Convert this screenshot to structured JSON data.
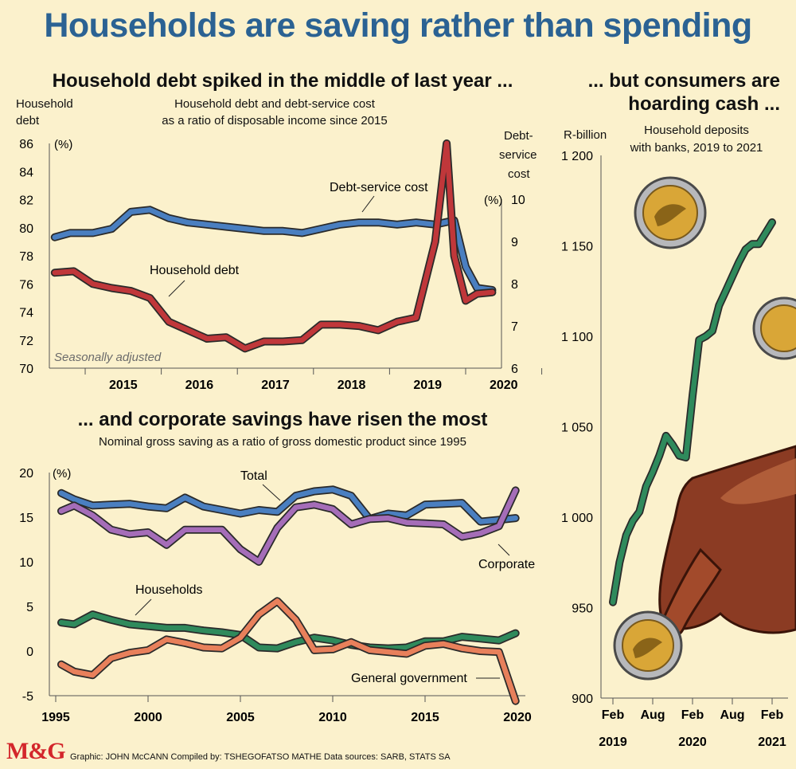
{
  "title": "Households are saving rather than spending",
  "credits": "Graphic: JOHN McCANN  Compiled by: TSHEGOFATSO MATHE  Data sources: SARB, STATS SA",
  "logo": "M&G",
  "colors": {
    "background": "#fbf1cc",
    "title": "#2b6293",
    "blue": "#4a7fc0",
    "red": "#c0373a",
    "purple": "#a56db8",
    "green": "#2f8a5c",
    "orange": "#e8805b"
  },
  "chart_data": [
    {
      "type": "line",
      "title": "Household debt spiked in the middle of last year ...",
      "subtitle_line1": "Household debt and debt-service cost",
      "subtitle_line2": "as a ratio of disposable income since 2015",
      "ylabel_left_line1": "Household",
      "ylabel_left_line2": "debt",
      "ylabel_right_line1": "Debt-",
      "ylabel_right_line2": "service",
      "ylabel_right_line3": "cost",
      "unit_left": "(%)",
      "unit_right": "(%)",
      "note": "Seasonally adjusted",
      "x_ticks": [
        "2015",
        "2016",
        "2017",
        "2018",
        "2019",
        "2020"
      ],
      "ylim_left": [
        70,
        86
      ],
      "yticks_left": [
        70,
        72,
        74,
        76,
        78,
        80,
        82,
        84,
        86
      ],
      "ylim_right": [
        6,
        10
      ],
      "yticks_right": [
        6,
        7,
        8,
        9,
        10
      ],
      "series": [
        {
          "name": "Debt-service cost",
          "axis": "right",
          "x": [
            2014.6,
            2014.8,
            2015.1,
            2015.35,
            2015.6,
            2015.85,
            2016.1,
            2016.35,
            2016.6,
            2016.85,
            2017.1,
            2017.35,
            2017.6,
            2017.85,
            2018.1,
            2018.35,
            2018.6,
            2018.85,
            2019.1,
            2019.35,
            2019.6,
            2019.85,
            2020.0,
            2020.15,
            2020.35
          ],
          "values": [
            9.1,
            9.2,
            9.2,
            9.3,
            9.7,
            9.75,
            9.55,
            9.45,
            9.4,
            9.35,
            9.3,
            9.25,
            9.25,
            9.2,
            9.3,
            9.4,
            9.45,
            9.45,
            9.4,
            9.45,
            9.4,
            9.5,
            8.4,
            7.9,
            7.85
          ]
        },
        {
          "name": "Household debt",
          "axis": "left",
          "x": [
            2014.6,
            2014.85,
            2015.1,
            2015.35,
            2015.6,
            2015.85,
            2016.1,
            2016.35,
            2016.6,
            2016.85,
            2017.1,
            2017.35,
            2017.6,
            2017.85,
            2018.1,
            2018.35,
            2018.6,
            2018.85,
            2019.1,
            2019.35,
            2019.6,
            2019.75,
            2019.85,
            2020.0,
            2020.15,
            2020.35
          ],
          "values": [
            76.8,
            76.9,
            76.0,
            75.7,
            75.5,
            75.0,
            73.3,
            72.7,
            72.1,
            72.2,
            71.4,
            71.9,
            71.9,
            72.0,
            73.1,
            73.1,
            73.0,
            72.7,
            73.3,
            73.6,
            79.0,
            86.0,
            78.0,
            74.8,
            75.3,
            75.4
          ]
        }
      ]
    },
    {
      "type": "line",
      "title": "... and corporate savings have risen the most",
      "subtitle": "Nominal gross saving as a ratio of gross domestic product since 1995",
      "unit": "(%)",
      "x_ticks": [
        "1995",
        "2000",
        "2005",
        "2010",
        "2015",
        "2020"
      ],
      "ylim": [
        -5,
        20
      ],
      "yticks": [
        -5,
        0,
        5,
        10,
        15,
        20
      ],
      "series": [
        {
          "name": "Total",
          "x": [
            1995.3,
            1996,
            1997,
            1998,
            1999,
            2000,
            2001,
            2002,
            2003,
            2004,
            2005,
            2006,
            2007,
            2008,
            2009,
            2010,
            2011,
            2012,
            2013,
            2014,
            2015,
            2016,
            2017,
            2018,
            2019,
            2019.9
          ],
          "values": [
            17.7,
            17.0,
            16.3,
            16.4,
            16.5,
            16.2,
            16.0,
            17.2,
            16.2,
            15.8,
            15.4,
            15.8,
            15.6,
            17.4,
            17.9,
            18.1,
            17.4,
            14.8,
            15.4,
            15.2,
            16.4,
            16.5,
            16.6,
            14.5,
            14.7,
            14.9
          ]
        },
        {
          "name": "Corporate",
          "x": [
            1995.3,
            1996,
            1997,
            1998,
            1999,
            2000,
            2001,
            2002,
            2003,
            2004,
            2005,
            2006,
            2007,
            2008,
            2009,
            2010,
            2011,
            2012,
            2013,
            2014,
            2015,
            2016,
            2017,
            2018,
            2019,
            2019.9
          ],
          "values": [
            15.7,
            16.3,
            15.2,
            13.6,
            13.1,
            13.3,
            11.9,
            13.6,
            13.6,
            13.6,
            11.4,
            10.0,
            13.8,
            16.1,
            16.4,
            15.9,
            14.2,
            14.8,
            14.9,
            14.4,
            14.3,
            14.2,
            12.8,
            13.2,
            14.0,
            18.0
          ]
        },
        {
          "name": "Households",
          "x": [
            1995.3,
            1996,
            1997,
            1998,
            1999,
            2000,
            2001,
            2002,
            2003,
            2004,
            2005,
            2006,
            2007,
            2008,
            2009,
            2010,
            2011,
            2012,
            2013,
            2014,
            2015,
            2016,
            2017,
            2018,
            2019,
            2019.9
          ],
          "values": [
            3.2,
            3.0,
            4.1,
            3.5,
            3.0,
            2.8,
            2.6,
            2.6,
            2.3,
            2.1,
            1.8,
            0.4,
            0.3,
            1.0,
            1.5,
            1.2,
            0.7,
            0.4,
            0.3,
            0.4,
            1.1,
            1.1,
            1.6,
            1.4,
            1.2,
            2.0
          ]
        },
        {
          "name": "General government",
          "x": [
            1995.3,
            1996,
            1997,
            1998,
            1999,
            2000,
            2001,
            2002,
            2003,
            2004,
            2005,
            2006,
            2007,
            2008,
            2009,
            2010,
            2011,
            2012,
            2013,
            2014,
            2015,
            2016,
            2017,
            2018,
            2019,
            2019.9
          ],
          "values": [
            -1.5,
            -2.3,
            -2.7,
            -0.8,
            -0.2,
            0.1,
            1.3,
            0.9,
            0.4,
            0.3,
            1.5,
            4.1,
            5.6,
            3.5,
            0.1,
            0.2,
            1.0,
            0.1,
            -0.1,
            -0.3,
            0.6,
            0.8,
            0.3,
            0.0,
            -0.1,
            -5.6
          ]
        }
      ]
    },
    {
      "type": "line",
      "title_line1": "... but consumers are",
      "title_line2": "hoarding cash ...",
      "subtitle_line1": "Household deposits",
      "subtitle_line2": "with banks, 2019 to 2021",
      "ylabel": "R-billion",
      "ylim": [
        900,
        1200
      ],
      "yticks": [
        "900",
        "950",
        "1 000",
        "1 050",
        "1 100",
        "1 150",
        "1 200"
      ],
      "x_ticks": [
        {
          "month": "Feb",
          "year": "2019"
        },
        {
          "month": "Aug",
          "year": ""
        },
        {
          "month": "Feb",
          "year": "2020"
        },
        {
          "month": "Aug",
          "year": ""
        },
        {
          "month": "Feb",
          "year": "2021"
        }
      ],
      "series": [
        {
          "name": "Household deposits",
          "x": [
            0,
            1,
            2,
            3,
            4,
            5,
            6,
            7,
            8,
            9,
            10,
            11,
            12,
            13,
            14,
            15,
            16,
            17,
            18,
            19,
            20,
            21,
            22,
            23,
            24
          ],
          "values": [
            953,
            975,
            990,
            998,
            1003,
            1017,
            1025,
            1034,
            1045,
            1040,
            1034,
            1033,
            1067,
            1098,
            1100,
            1103,
            1117,
            1125,
            1133,
            1141,
            1148,
            1151,
            1151,
            1157,
            1163
          ]
        }
      ]
    }
  ]
}
